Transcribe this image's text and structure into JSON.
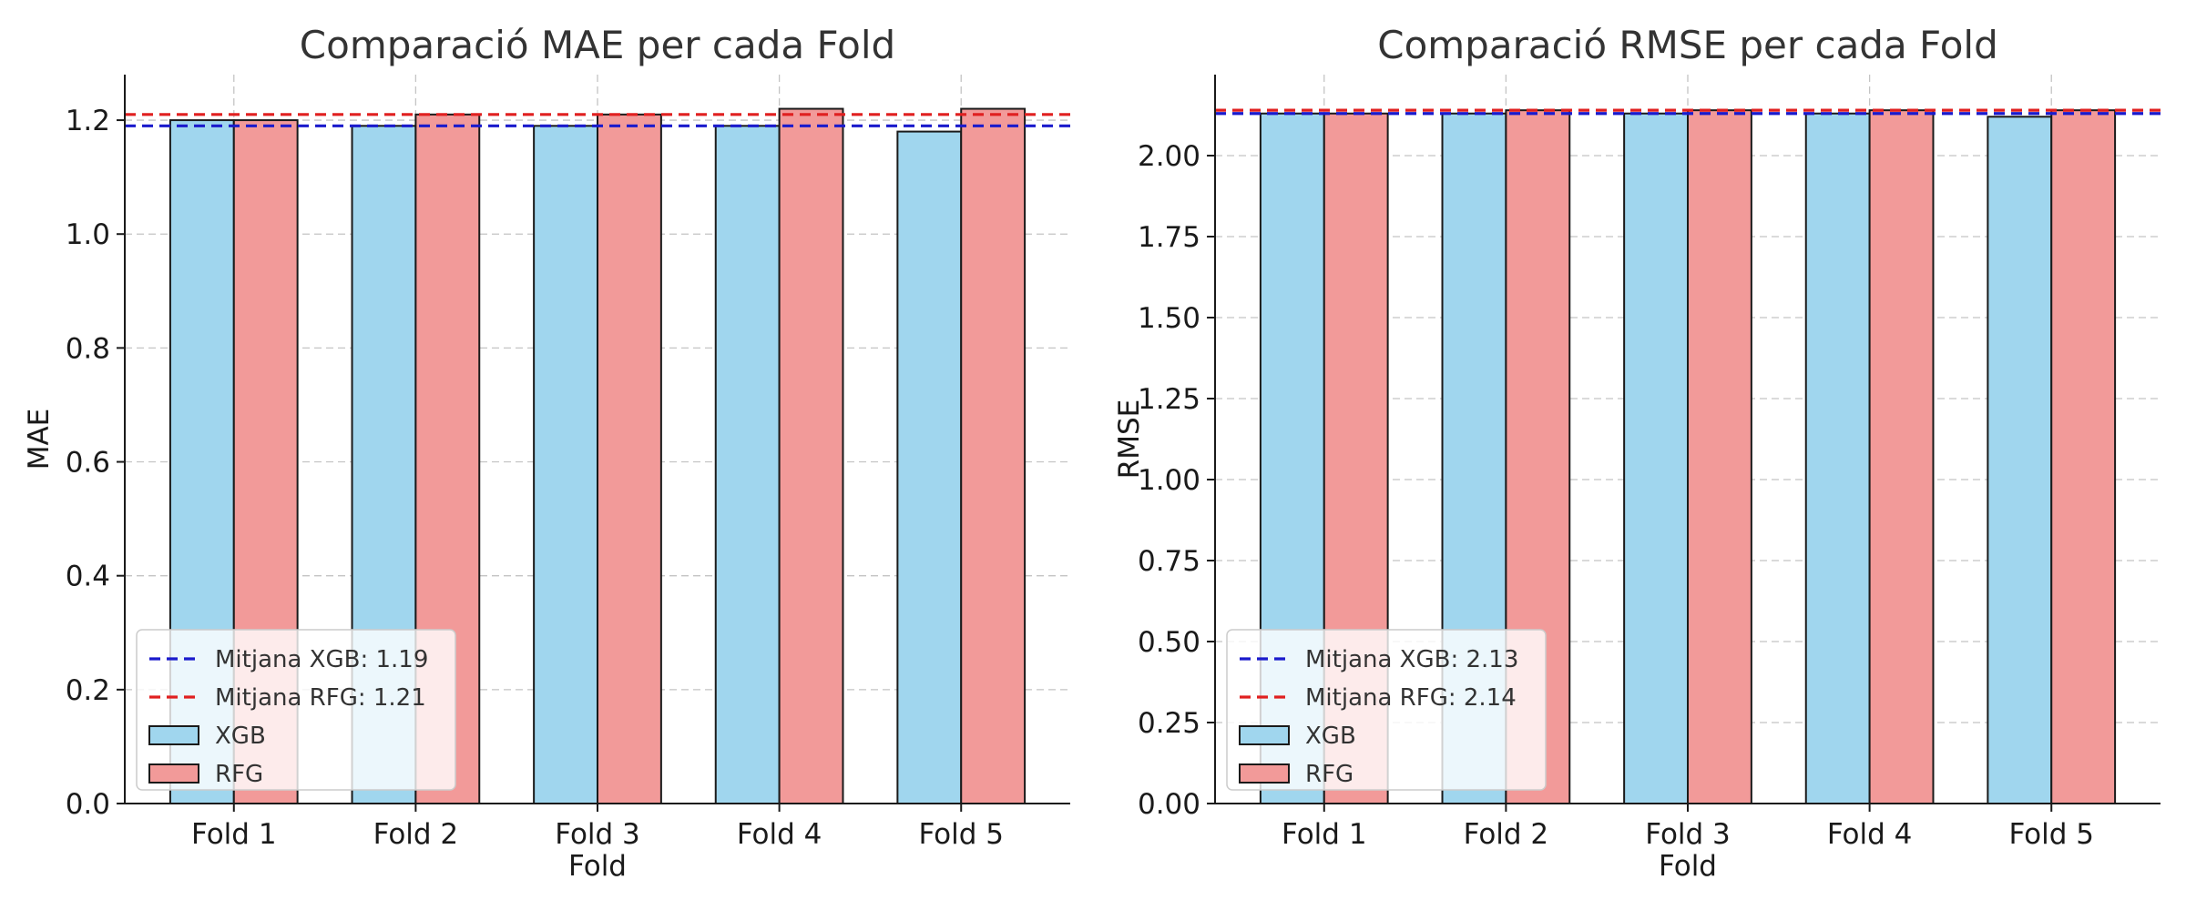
{
  "chart_data": [
    {
      "type": "bar",
      "title": "Comparació MAE per cada Fold",
      "xlabel": "Fold",
      "ylabel": "MAE",
      "categories": [
        "Fold 1",
        "Fold 2",
        "Fold 3",
        "Fold 4",
        "Fold 5"
      ],
      "series": [
        {
          "name": "XGB",
          "color": "#a0d6ee",
          "values": [
            1.2,
            1.19,
            1.19,
            1.19,
            1.18
          ]
        },
        {
          "name": "RFG",
          "color": "#f29a99",
          "values": [
            1.2,
            1.21,
            1.21,
            1.22,
            1.22
          ]
        }
      ],
      "mean_lines": [
        {
          "label": "Mitjana XGB: 1.19",
          "value": 1.19,
          "color": "#1a1acc"
        },
        {
          "label": "Mitjana RFG: 1.21",
          "value": 1.21,
          "color": "#e02020"
        }
      ],
      "ylim": [
        0,
        1.28
      ],
      "yticks": [
        0.0,
        0.2,
        0.4,
        0.6,
        0.8,
        1.0,
        1.2
      ],
      "ytick_labels": [
        "0.0",
        "0.2",
        "0.4",
        "0.6",
        "0.8",
        "1.0",
        "1.2"
      ],
      "grid": true,
      "legend": "lower-left"
    },
    {
      "type": "bar",
      "title": "Comparació RMSE per cada Fold",
      "xlabel": "Fold",
      "ylabel": "RMSE",
      "categories": [
        "Fold 1",
        "Fold 2",
        "Fold 3",
        "Fold 4",
        "Fold 5"
      ],
      "series": [
        {
          "name": "XGB",
          "color": "#a0d6ee",
          "values": [
            2.13,
            2.13,
            2.13,
            2.13,
            2.12
          ]
        },
        {
          "name": "RFG",
          "color": "#f29a99",
          "values": [
            2.13,
            2.14,
            2.14,
            2.14,
            2.14
          ]
        }
      ],
      "mean_lines": [
        {
          "label": "Mitjana XGB: 2.13",
          "value": 2.13,
          "color": "#1a1acc"
        },
        {
          "label": "Mitjana RFG: 2.14",
          "value": 2.14,
          "color": "#e02020"
        }
      ],
      "ylim": [
        0,
        2.25
      ],
      "yticks": [
        0.0,
        0.25,
        0.5,
        0.75,
        1.0,
        1.25,
        1.5,
        1.75,
        2.0
      ],
      "ytick_labels": [
        "0.00",
        "0.25",
        "0.50",
        "0.75",
        "1.00",
        "1.25",
        "1.50",
        "1.75",
        "2.00"
      ],
      "grid": true,
      "legend": "lower-left"
    }
  ]
}
